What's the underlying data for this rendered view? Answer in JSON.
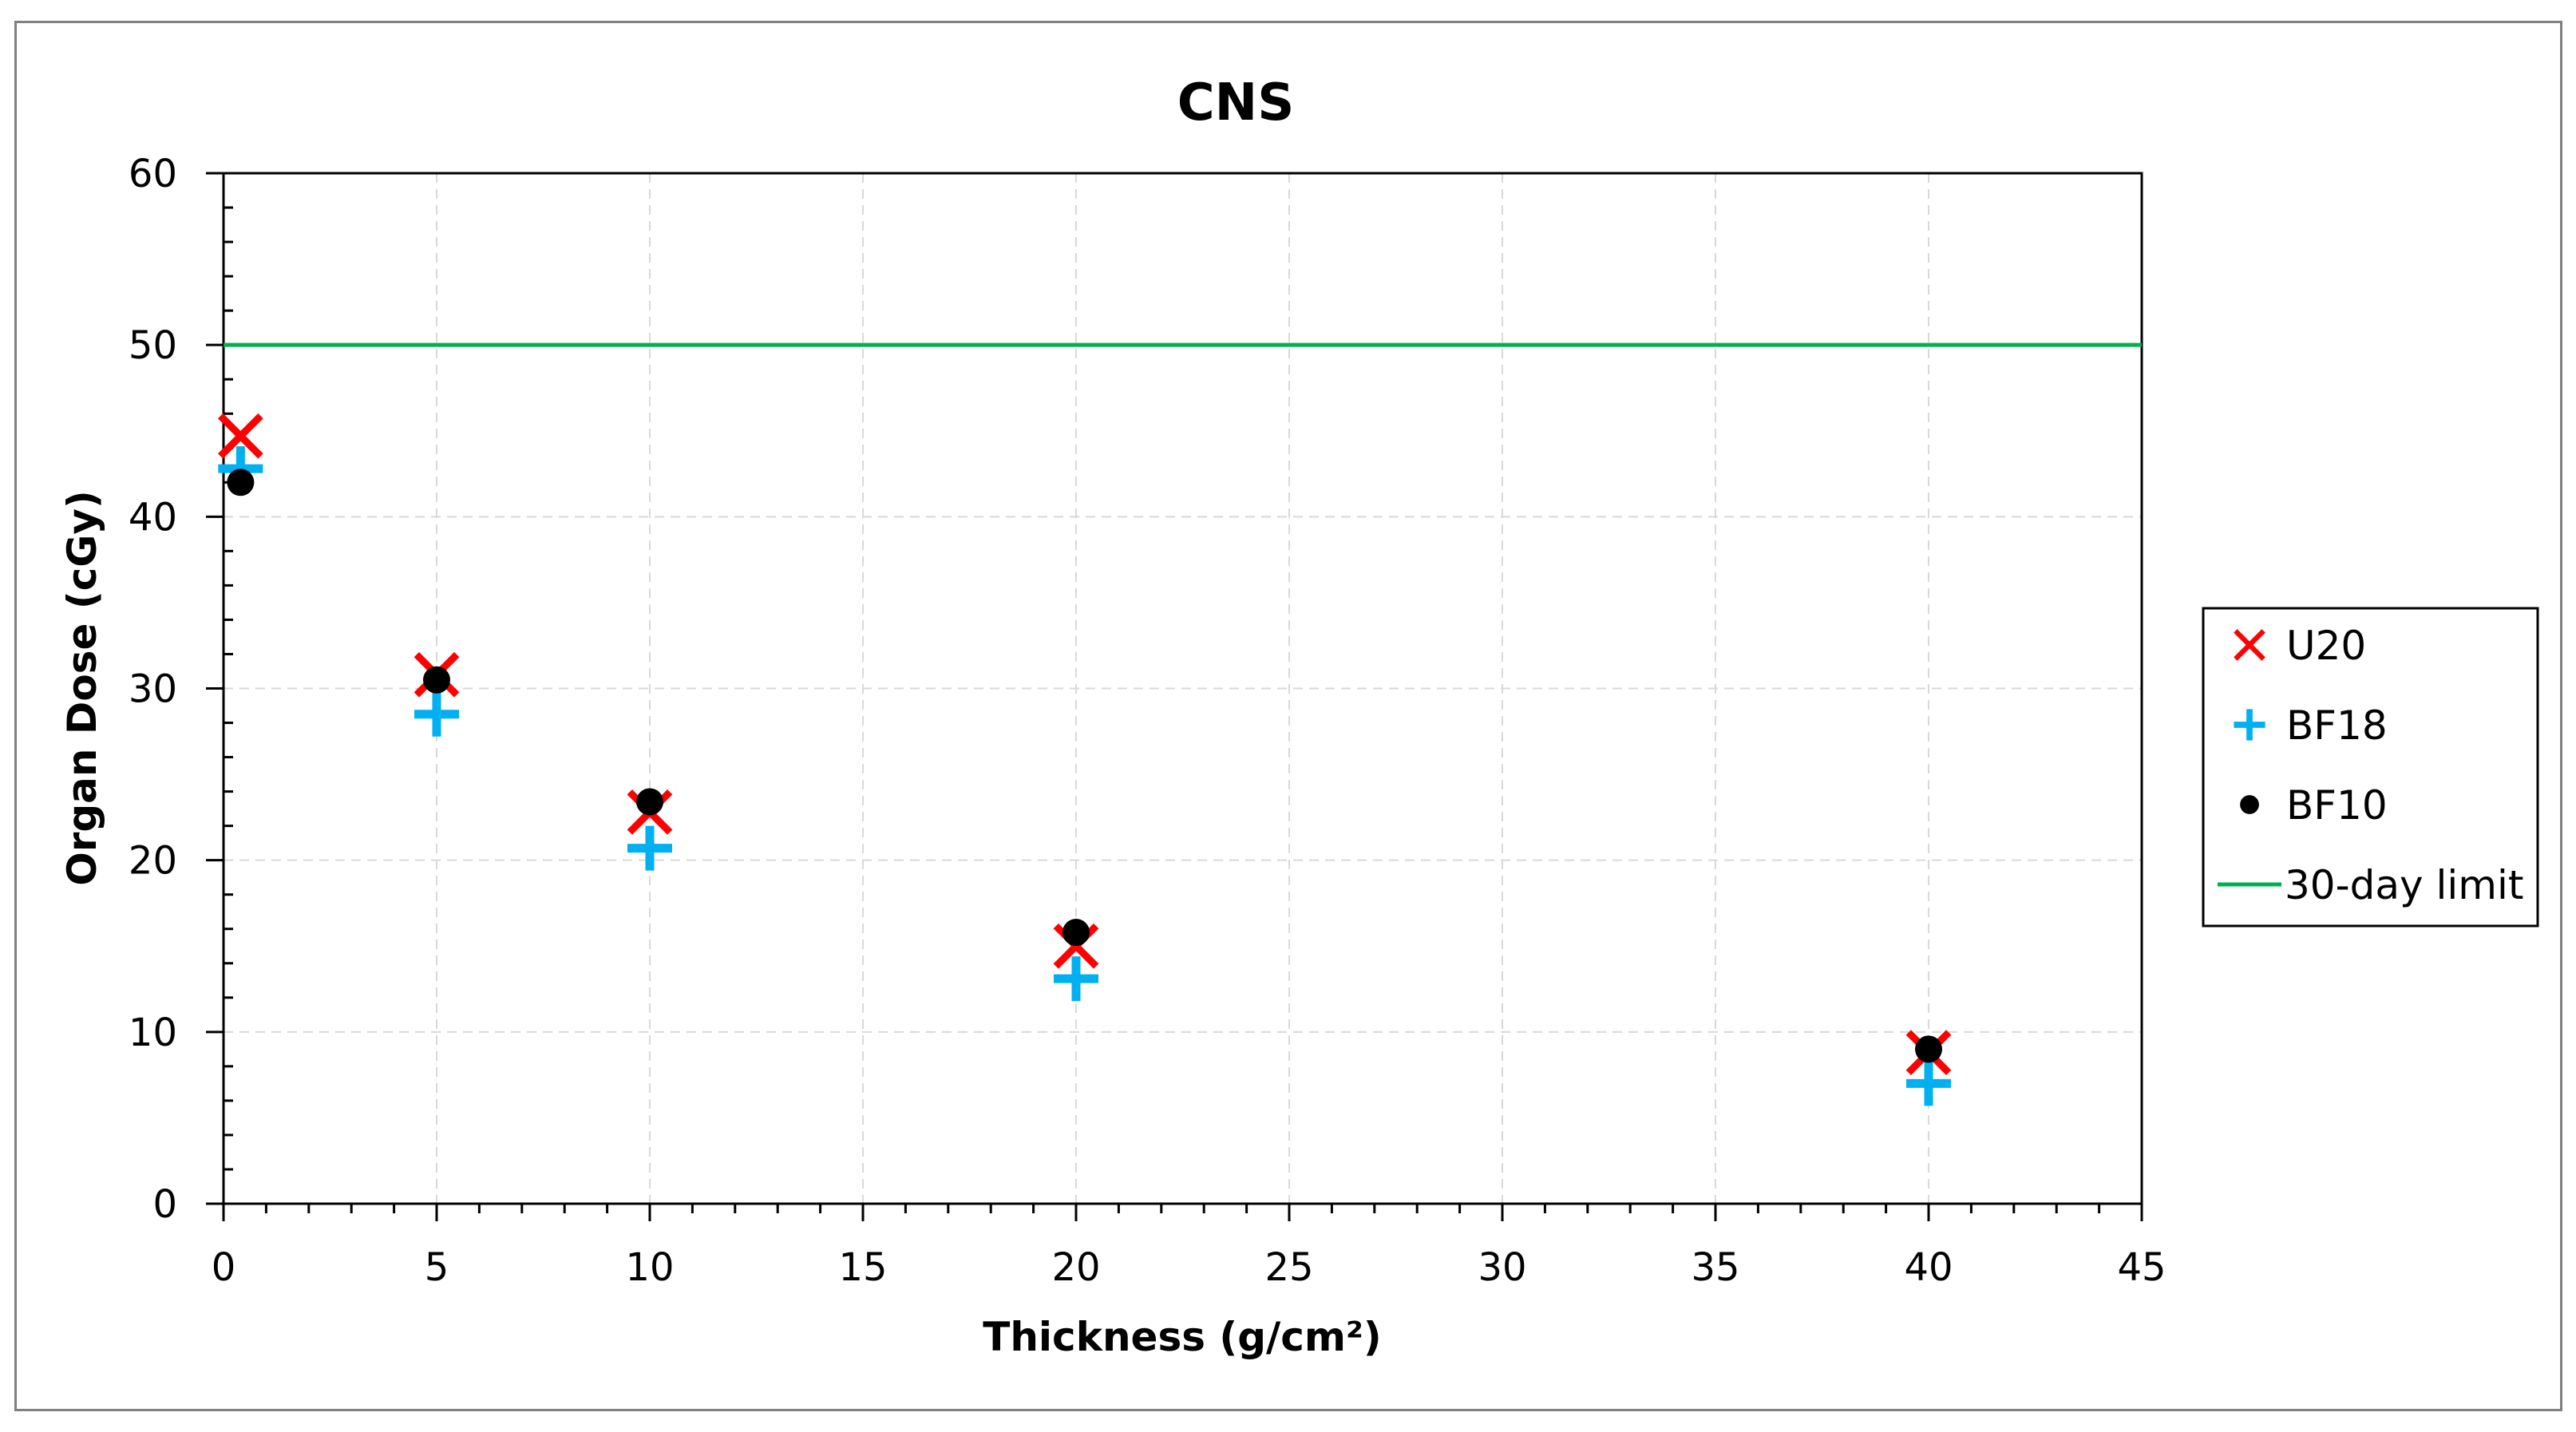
{
  "chart_data": {
    "type": "scatter",
    "title": "CNS",
    "xlabel": "Thickness (g/cm²)",
    "ylabel": "Organ Dose (cGy)",
    "xlim": [
      0,
      45
    ],
    "ylim": [
      0,
      60
    ],
    "xticks": [
      "0",
      "5",
      "10",
      "15",
      "20",
      "25",
      "30",
      "35",
      "40",
      "45"
    ],
    "yticks": [
      "0",
      "10",
      "20",
      "30",
      "40",
      "50",
      "60"
    ],
    "grid": true,
    "legend_position": "right",
    "series": [
      {
        "name": "U20",
        "marker": "x",
        "color": "#ff0000",
        "x": [
          0.4,
          5,
          10,
          20,
          40
        ],
        "y": [
          44.7,
          30.8,
          22.8,
          15.0,
          8.8
        ]
      },
      {
        "name": "BF18",
        "marker": "plus",
        "color": "#00b0f0",
        "x": [
          0.4,
          5,
          10,
          20,
          40
        ],
        "y": [
          42.8,
          28.5,
          20.7,
          13.1,
          7.0
        ]
      },
      {
        "name": "BF10",
        "marker": "circle",
        "color": "#000000",
        "x": [
          0.4,
          5,
          10,
          20,
          40
        ],
        "y": [
          42.0,
          30.5,
          23.4,
          15.8,
          9.0
        ]
      },
      {
        "name": "30-day limit",
        "marker": "line",
        "color": "#00b050",
        "x": [
          0,
          45
        ],
        "y": [
          50,
          50
        ]
      }
    ]
  }
}
